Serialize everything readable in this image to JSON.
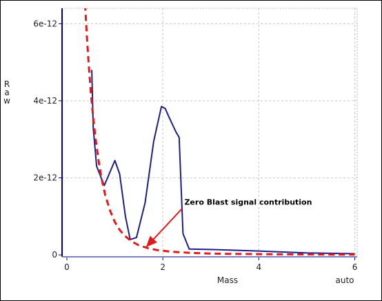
{
  "chart_data": {
    "type": "line",
    "xlabel": "Mass",
    "ylabel": "Raw",
    "ylabel_chars": [
      "R",
      "a",
      "w"
    ],
    "scale_mode": "auto",
    "xlim": [
      -0.1,
      6.05
    ],
    "ylim": [
      -5e-14,
      6.4e-12
    ],
    "x_ticks": [
      0,
      2,
      4,
      6
    ],
    "x_tick_labels": [
      "0",
      "2",
      "4",
      "6"
    ],
    "y_ticks": [
      0,
      2e-12,
      4e-12,
      6e-12
    ],
    "y_tick_labels": [
      "0",
      "2e-12",
      "4e-12",
      "6e-12"
    ],
    "grid": true,
    "series": [
      {
        "style": "solid",
        "color": "#1c1c8c",
        "x": [
          0.52,
          0.55,
          0.62,
          0.78,
          1.0,
          1.1,
          1.22,
          1.32,
          1.45,
          1.63,
          1.81,
          1.97,
          2.05,
          2.12,
          2.27,
          2.34,
          2.42,
          2.55,
          3.0,
          4.0,
          5.0,
          6.0
        ],
        "y": [
          4.8e-12,
          3.3e-12,
          2.3e-12,
          1.8e-12,
          2.45e-12,
          2.1e-12,
          1e-12,
          4e-13,
          4.5e-13,
          1.35e-12,
          2.95e-12,
          3.85e-12,
          3.8e-12,
          3.6e-12,
          3.2e-12,
          3.05e-12,
          5.5e-13,
          1.5e-13,
          1.4e-13,
          1e-13,
          5e-14,
          3e-14
        ]
      },
      {
        "style": "dashed",
        "color": "#e01a1a",
        "x": [
          0.38,
          0.42,
          0.46,
          0.5,
          0.55,
          0.6,
          0.66,
          0.72,
          0.8,
          0.9,
          1.0,
          1.1,
          1.2,
          1.35,
          1.5,
          1.7,
          1.9,
          2.2,
          2.6,
          3.0,
          3.5,
          4.0,
          4.5,
          5.0,
          5.5,
          6.0
        ],
        "y": [
          6.5e-12,
          5.6e-12,
          4.85e-12,
          4.2e-12,
          3.55e-12,
          3e-12,
          2.45e-12,
          2e-12,
          1.55e-12,
          1.15e-12,
          8.5e-13,
          6.5e-13,
          5e-13,
          3.5e-13,
          2.5e-13,
          1.7e-13,
          1.2e-13,
          8e-14,
          5e-14,
          3.5e-14,
          2.5e-14,
          2e-14,
          1.5e-14,
          1.2e-14,
          1e-14,
          8e-15
        ]
      }
    ],
    "annotations": [
      {
        "text": "Zero Blast signal contribution",
        "color": "#e01a1a",
        "arrow_tail": [
          2.4,
          1.2e-12
        ],
        "arrow_head": [
          1.65,
          2e-13
        ],
        "text_anchor_data": [
          2.45,
          1.25e-12
        ]
      }
    ]
  }
}
